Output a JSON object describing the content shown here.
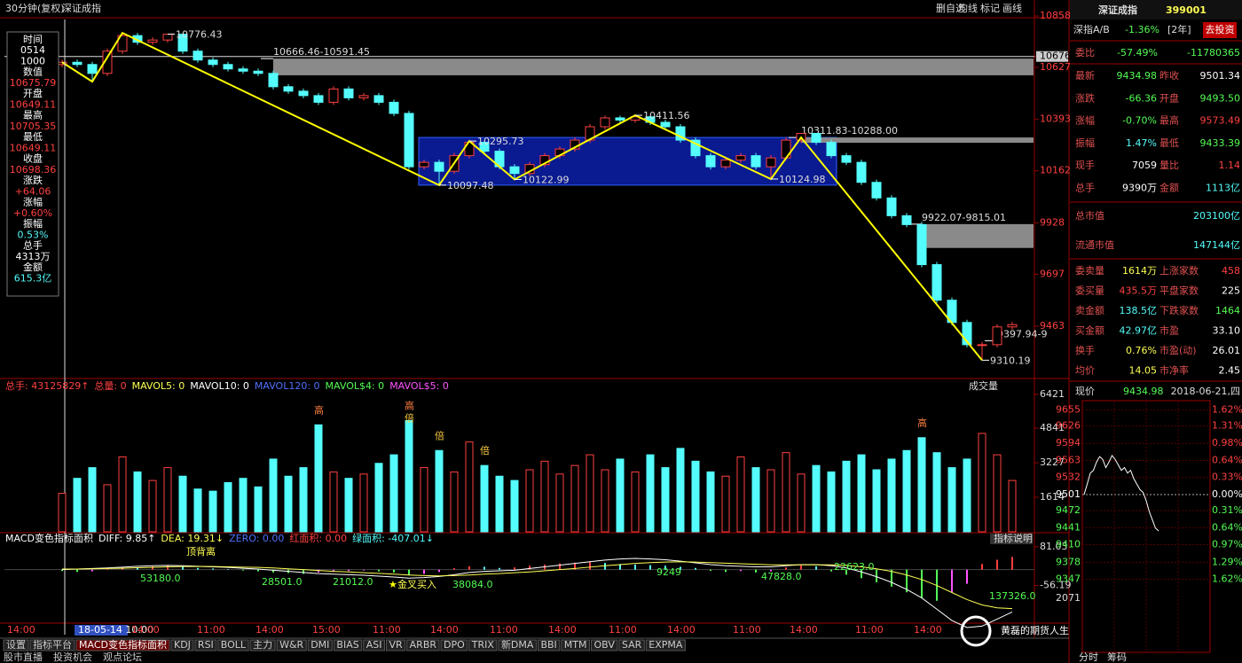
{
  "header": {
    "period": "30分钟(复权)",
    "index_name": "深证成指",
    "buttons": [
      "删自选",
      "均线",
      "标记",
      "画线"
    ]
  },
  "left_panel": [
    {
      "label": "时间",
      "value": "0514",
      "color": "#ffffff"
    },
    {
      "label": "1000",
      "value": "数值",
      "color": "#ffffff"
    },
    {
      "label": "10675.79",
      "value": "开盘",
      "color": "#ff4040"
    },
    {
      "label": "10649.11",
      "value": "最高",
      "color": "#ff4040"
    },
    {
      "label": "10705.35",
      "value": "最低",
      "color": "#ff4040"
    },
    {
      "label": "10649.11",
      "value": "收盘",
      "color": "#ff4040"
    },
    {
      "label": "10698.36",
      "value": "涨跌",
      "color": "#ff4040"
    },
    {
      "label": "+64.06",
      "value": "涨幅",
      "color": "#ff4040"
    },
    {
      "label": "+0.60%",
      "value": "振幅",
      "color": "#ff4040"
    },
    {
      "label": "0.53%",
      "value": "总手",
      "color": "#54fcfc"
    },
    {
      "label": "4313万",
      "value": "金额",
      "color": "#ffffff"
    },
    {
      "label": "615.3亿",
      "value": "",
      "color": "#54fcfc"
    }
  ],
  "price": {
    "ylim": [
      9236,
      10930
    ],
    "yticks": [
      10858,
      10676,
      10627,
      10393,
      10162,
      9928,
      9697,
      9463
    ],
    "cursor": 10675.79,
    "open": [
      10640,
      10650,
      10640,
      10600,
      10700,
      10770,
      10740,
      10750,
      10776,
      10700,
      10660,
      10640,
      10620,
      10610,
      10600,
      10540,
      10520,
      10500,
      10470,
      10530,
      10490,
      10500,
      10470,
      10420,
      10180,
      10200,
      10160,
      10230,
      10290,
      10250,
      10180,
      10150,
      10190,
      10230,
      10260,
      10300,
      10360,
      10400,
      10390,
      10405,
      10380,
      10360,
      10300,
      10230,
      10180,
      10210,
      10230,
      10180,
      10220,
      10300,
      10330,
      10290,
      10230,
      10200,
      10110,
      10040,
      9960,
      9920,
      9740,
      9580,
      9480,
      9380,
      9380,
      9460
    ],
    "high": [
      10662,
      10662,
      10652,
      10712,
      10782,
      10782,
      10762,
      10777,
      10778,
      10712,
      10672,
      10652,
      10632,
      10622,
      10612,
      10552,
      10532,
      10512,
      10542,
      10542,
      10512,
      10512,
      10482,
      10432,
      10212,
      10212,
      10242,
      10296,
      10295,
      10262,
      10192,
      10202,
      10242,
      10272,
      10312,
      10372,
      10410,
      10410,
      10412,
      10410,
      10392,
      10372,
      10312,
      10242,
      10222,
      10242,
      10242,
      10232,
      10312,
      10332,
      10332,
      10302,
      10242,
      10212,
      10122,
      10052,
      9972,
      9932,
      9752,
      9592,
      9492,
      9392,
      9472,
      9482
    ],
    "low": [
      10628,
      10628,
      10563,
      10588,
      10688,
      10728,
      10728,
      10738,
      10688,
      10648,
      10628,
      10608,
      10598,
      10588,
      10528,
      10508,
      10488,
      10458,
      10458,
      10478,
      10478,
      10458,
      10408,
      10168,
      10168,
      10097,
      10148,
      10218,
      10238,
      10168,
      10123,
      10138,
      10178,
      10218,
      10248,
      10288,
      10348,
      10378,
      10378,
      10368,
      10348,
      10288,
      10218,
      10168,
      10168,
      10198,
      10168,
      10125,
      10208,
      10288,
      10278,
      10218,
      10188,
      10098,
      10028,
      9948,
      9908,
      9728,
      9568,
      9468,
      9368,
      9310,
      9368,
      9448
    ],
    "close": [
      10650,
      10640,
      10600,
      10700,
      10770,
      10740,
      10750,
      10776,
      10700,
      10660,
      10640,
      10620,
      10610,
      10600,
      10540,
      10520,
      10500,
      10470,
      10530,
      10490,
      10500,
      10470,
      10420,
      10180,
      10200,
      10160,
      10230,
      10290,
      10250,
      10180,
      10150,
      10190,
      10230,
      10260,
      10300,
      10360,
      10400,
      10390,
      10405,
      10380,
      10360,
      10300,
      10230,
      10180,
      10210,
      10230,
      10180,
      10220,
      10300,
      10330,
      10290,
      10230,
      10200,
      10110,
      10040,
      9960,
      9920,
      9740,
      9580,
      9480,
      9380,
      9380,
      9460,
      9470
    ],
    "zigzag": {
      "x": [
        0,
        2,
        4,
        25,
        27,
        30,
        38,
        47,
        49,
        61
      ],
      "values": [
        10650,
        10563,
        10782,
        10097.48,
        10295.73,
        10122.99,
        10411.56,
        10124.98,
        10311.83,
        9310.19
      ]
    },
    "pivots": [
      {
        "index": 7,
        "value": 10776.43
      },
      {
        "index": 38,
        "value": 10411.56
      },
      {
        "index": 27,
        "value": 10295.73
      },
      {
        "index": 25,
        "value": 10097.48
      },
      {
        "index": 30,
        "value": 10122.99
      },
      {
        "index": 47,
        "value": 10124.98
      },
      {
        "index": 61,
        "value": 9310.19
      }
    ],
    "gaps": [
      {
        "label": "10666.46-10591.45",
        "high": 10666.46,
        "low": 10591.45,
        "start": 14
      },
      {
        "label": "10311.83-10288.00",
        "high": 10311.83,
        "low": 10288.0,
        "start": 49
      },
      {
        "label": "9922.07-9815.01",
        "high": 9922.07,
        "low": 9815.01,
        "start": 57
      },
      {
        "label": "9397.94-9",
        "high": 9397.94,
        "start": 62
      }
    ],
    "box": {
      "start": 24,
      "end": 51,
      "high": 10311.83,
      "low": 10097.48
    }
  },
  "volume": {
    "header": [
      {
        "text": "总手: 43125829↑",
        "color": "#ff4040"
      },
      {
        "text": "总量: 0",
        "color": "#ff4040"
      },
      {
        "text": "MAVOL5: 0",
        "color": "#ffff54"
      },
      {
        "text": "MAVOL10: 0",
        "color": "#ffffff"
      },
      {
        "text": "MAVOL120: 0",
        "color": "#5070ff"
      },
      {
        "text": "MAVOL$4: 0",
        "color": "#54fc54"
      },
      {
        "text": "MAVOL$5: 0",
        "color": "#ff54ff"
      }
    ],
    "menu": "成交量",
    "ylim": [
      0,
      6421
    ],
    "yticks": [
      6421,
      4841,
      3227,
      1614
    ],
    "values": [
      1800,
      2500,
      3000,
      2200,
      3500,
      2800,
      2400,
      3000,
      2600,
      2000,
      1900,
      2300,
      2500,
      2100,
      3400,
      2600,
      3000,
      5000,
      2800,
      2500,
      2700,
      3200,
      3600,
      5200,
      3000,
      3800,
      2800,
      4200,
      3100,
      2600,
      2400,
      2900,
      3300,
      2700,
      3100,
      3600,
      2900,
      3400,
      2800,
      3600,
      3000,
      3900,
      3300,
      2800,
      2600,
      3500,
      3000,
      2900,
      3700,
      2700,
      3100,
      2800,
      3300,
      3600,
      2900,
      3400,
      3800,
      4400,
      3700,
      3000,
      3400,
      4600,
      3600,
      2400
    ],
    "markers": [
      {
        "text": "高",
        "index": 17
      },
      {
        "text": "高",
        "index": 23
      },
      {
        "text": "倍",
        "index": 23
      },
      {
        "text": "倍",
        "index": 25
      },
      {
        "text": "倍",
        "index": 28
      },
      {
        "text": "高",
        "index": 57
      }
    ]
  },
  "macd": {
    "header": [
      {
        "text": "MACD变色指标面积",
        "color": "#ffffff"
      },
      {
        "text": "DIFF: 9.85↑",
        "color": "#ffffff"
      },
      {
        "text": "DEA: 19.31↓",
        "color": "#ffff54"
      },
      {
        "text": "ZERO: 0.00",
        "color": "#5070ff"
      },
      {
        "text": "红面积: 0.00",
        "color": "#ff4040"
      },
      {
        "text": "绿面积: -407.01↓",
        "color": "#54fcfc"
      }
    ],
    "help": "指标说明",
    "ylim": [
      -227,
      112
    ],
    "yticks": [
      81.03,
      -56.19
    ],
    "hist": [
      -5,
      -8,
      -6,
      5,
      10,
      8,
      12,
      15,
      10,
      6,
      4,
      2,
      -3,
      -6,
      -10,
      -12,
      -15,
      -10,
      -8,
      -5,
      -3,
      -6,
      -10,
      -20,
      -15,
      -8,
      5,
      12,
      10,
      6,
      8,
      14,
      18,
      22,
      25,
      28,
      24,
      20,
      18,
      16,
      14,
      10,
      6,
      -4,
      -8,
      -5,
      -10,
      -6,
      8,
      15,
      12,
      -6,
      -18,
      -30,
      -45,
      -60,
      -80,
      -100,
      -110,
      -80,
      -50,
      20,
      35,
      45
    ],
    "diff": [
      0,
      2,
      4,
      6,
      9,
      12,
      14,
      15,
      14,
      12,
      10,
      8,
      5,
      2,
      -2,
      -6,
      -10,
      -14,
      -16,
      -18,
      -20,
      -23,
      -26,
      -30,
      -28,
      -24,
      -18,
      -10,
      -6,
      -4,
      -2,
      4,
      10,
      16,
      22,
      28,
      34,
      38,
      40,
      38,
      35,
      30,
      24,
      18,
      14,
      12,
      10,
      10,
      14,
      18,
      18,
      14,
      6,
      -8,
      -25,
      -45,
      -70,
      -100,
      -140,
      -180,
      -205,
      -200,
      -175,
      -150
    ],
    "dea": [
      2,
      2,
      3,
      4,
      5,
      7,
      8,
      10,
      11,
      11,
      11,
      10,
      9,
      8,
      6,
      3,
      0,
      -3,
      -6,
      -8,
      -11,
      -13,
      -16,
      -19,
      -21,
      -22,
      -21,
      -19,
      -16,
      -14,
      -11,
      -8,
      -4,
      0,
      4,
      9,
      14,
      18,
      22,
      25,
      27,
      28,
      27,
      25,
      23,
      21,
      19,
      17,
      17,
      17,
      17,
      17,
      15,
      10,
      3,
      -6,
      -19,
      -35,
      -56,
      -81,
      -106,
      -125,
      -135,
      -138
    ],
    "annotations": [
      {
        "text": "顶背离",
        "color": "#ffff54"
      },
      {
        "text": "53180.0",
        "color": "#54fc54"
      },
      {
        "text": "28501.0",
        "color": "#54fc54"
      },
      {
        "text": "21012.0",
        "color": "#54fc54"
      },
      {
        "text": "金叉买入",
        "color": "#ffff54"
      },
      {
        "text": "38084.0",
        "color": "#54fc54"
      },
      {
        "text": "9249",
        "color": "#54fc54"
      },
      {
        "text": "47828.0",
        "color": "#54fc54"
      },
      {
        "text": "22623.0",
        "color": "#54fc54"
      },
      {
        "text": "137326.0",
        "color": "#54fc54"
      }
    ]
  },
  "x_labels": [
    "14:00",
    "18-05-14 10:00",
    "14:00",
    "11:00",
    "14:00",
    "15:00",
    "11:00",
    "14:00",
    "11:00",
    "14:00",
    "11:00",
    "14:00",
    "11:00",
    "14:00",
    "11:00",
    "14:00"
  ],
  "tabs": [
    "设置",
    "指标平台",
    "MACD变色指标面积",
    "KDJ",
    "RSI",
    "BOLL",
    "主力",
    "W&R",
    "DMI",
    "BIAS",
    "ASI",
    "VR",
    "ARBR",
    "DPO",
    "TRIX",
    "新DMA",
    "BBI",
    "MTM",
    "OBV",
    "SAR",
    "EXPMA"
  ],
  "active_tab": 2,
  "bottom_tabs": [
    "股市直播",
    "投资机会",
    "观点论坛"
  ],
  "right_panel": {
    "title": "深证成指",
    "code": "399001",
    "ab_label": "深指A/B",
    "ab_value": "-1.36%",
    "ab_period": "[2年]",
    "invest": "去投资",
    "weibi": [
      "委比",
      "-57.49%",
      "-11780365"
    ],
    "rows": [
      {
        "cells": [
          "最新",
          "9434.98",
          "昨收",
          "9501.34"
        ],
        "colors": [
          "#54fc54",
          "#ffffff"
        ]
      },
      {
        "cells": [
          "涨跌",
          "-66.36",
          "开盘",
          "9493.50"
        ],
        "colors": [
          "#54fc54",
          "#54fc54"
        ]
      },
      {
        "cells": [
          "涨幅",
          "-0.70%",
          "最高",
          "9573.49"
        ],
        "colors": [
          "#54fc54",
          "#ff4040"
        ]
      },
      {
        "cells": [
          "振幅",
          "1.47%",
          "最低",
          "9433.39"
        ],
        "colors": [
          "#54fcfc",
          "#54fc54"
        ]
      },
      {
        "cells": [
          "现手",
          "7059",
          "量比",
          "1.14"
        ],
        "colors": [
          "#ffffff",
          "#ff4040"
        ]
      },
      {
        "cells": [
          "总手",
          "9390万",
          "金额",
          "1113亿"
        ],
        "colors": [
          "#ffffff",
          "#54fcfc"
        ]
      }
    ],
    "caps": [
      {
        "cells": [
          "总市值",
          "203100亿"
        ]
      },
      {
        "cells": [
          "流通市值",
          "147144亿"
        ]
      }
    ],
    "rows2": [
      {
        "cells": [
          "委卖量",
          "1614万",
          "上涨家数",
          "458"
        ],
        "colors": [
          "#ffff54",
          "#ff4040"
        ]
      },
      {
        "cells": [
          "委买量",
          "435.5万",
          "平盘家数",
          "225"
        ],
        "colors": [
          "#ff4040",
          "#ffffff"
        ]
      },
      {
        "cells": [
          "卖金额",
          "138.5亿",
          "下跌家数",
          "1464"
        ],
        "colors": [
          "#54fcfc",
          "#54fc54"
        ]
      },
      {
        "cells": [
          "买金额",
          "42.97亿",
          "市盈",
          "33.10"
        ],
        "colors": [
          "#54fcfc",
          "#ffffff"
        ]
      },
      {
        "cells": [
          "换手",
          "0.76%",
          "市盈(动)",
          "26.01"
        ],
        "colors": [
          "#ffff54",
          "#ffffff"
        ]
      },
      {
        "cells": [
          "均价",
          "14.05",
          "市净率",
          "2.45"
        ],
        "colors": [
          "#ffff54",
          "#ffffff"
        ]
      }
    ],
    "now": [
      "现价",
      "9434.98",
      "2018-06-21,四"
    ],
    "mini": {
      "ylim": [
        9340,
        9662
      ],
      "xlim": [
        0,
        40
      ],
      "yticks": [
        9655,
        9626,
        9594,
        9563,
        9532,
        9501,
        9472,
        9441,
        9410,
        9378,
        9347
      ],
      "pct": [
        "1.62%",
        "1.31%",
        "0.98%",
        "0.64%",
        "0.33%",
        "0.00%",
        "0.31%",
        "0.64%",
        "0.97%",
        "1.29%",
        "1.62%"
      ],
      "values": [
        9501,
        9520,
        9540,
        9545,
        9560,
        9570,
        9565,
        9550,
        9560,
        9572,
        9565,
        9555,
        9545,
        9550,
        9540,
        9545,
        9530,
        9520,
        9510,
        9505,
        9490,
        9470,
        9455,
        9440,
        9435
      ],
      "vol_label": "2071"
    },
    "tabs": [
      "分时",
      "筹码"
    ]
  },
  "watermark": "黄磊的期货人生"
}
